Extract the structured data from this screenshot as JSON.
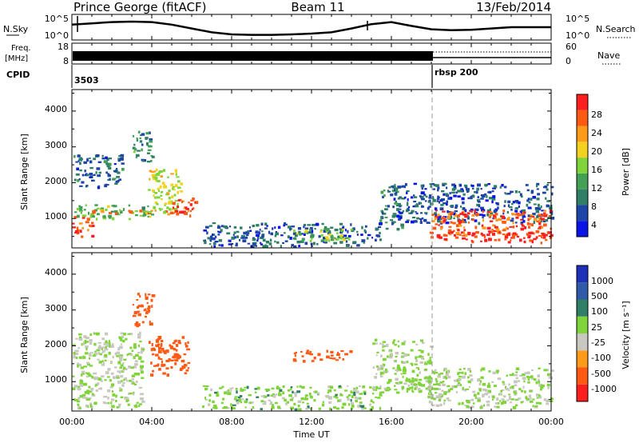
{
  "header": {
    "station": "Prince George (fitACF)",
    "beam": "Beam 11",
    "date": "13/Feb/2014"
  },
  "noise_panel": {
    "left_label": "N.Sky",
    "right_label": "N.Search",
    "left_ticks": [
      "10^5",
      "10^0"
    ],
    "right_ticks": [
      "10^5",
      "10^0"
    ]
  },
  "freq_panel": {
    "left_label_1": "Freq.",
    "left_label_2": "[MHz]",
    "left_ticks": [
      "18",
      "8"
    ],
    "right_label": "Nave",
    "right_ticks": [
      "60",
      "0"
    ]
  },
  "cpid_panel": {
    "label": "CPID",
    "programs": [
      {
        "name": "3503",
        "start_hour": 0
      },
      {
        "name": "rbsp 200",
        "start_hour": 18
      }
    ]
  },
  "time_axis": {
    "label": "Time UT",
    "ticks": [
      "00:00",
      "04:00",
      "08:00",
      "12:00",
      "16:00",
      "20:00",
      "00:00"
    ]
  },
  "range_axis": {
    "label": "Slant Range [km]",
    "ticks": [
      "1000",
      "2000",
      "3000",
      "4000"
    ]
  },
  "power_scale": {
    "label": "Power [dB]",
    "ticks": [
      "4",
      "8",
      "12",
      "16",
      "20",
      "24",
      "28"
    ],
    "colors": [
      "#0a14e6",
      "#1e44a8",
      "#2e7f66",
      "#44a055",
      "#7fd43a",
      "#f2d21e",
      "#ff9a1a",
      "#ff5a14",
      "#ff1e1e"
    ]
  },
  "velocity_scale": {
    "label": "Velocity [m s⁻¹]",
    "ticks": [
      "1000",
      "500",
      "100",
      "25",
      "-25",
      "-100",
      "-500",
      "-1000"
    ],
    "colors": [
      "#1e2fb8",
      "#2e5aa8",
      "#2e7f66",
      "#7fd43a",
      "#c8c8c0",
      "#ff9a1a",
      "#ff5a14",
      "#ff1e1e"
    ]
  },
  "chart_data": [
    {
      "type": "heatmap",
      "title": "Prince George (fitACF) Beam 11 13/Feb/2014",
      "xlabel": "Time UT",
      "ylabel": "Slant Range [km]",
      "colorbar": "Power [dB]",
      "xlim_hours": [
        0,
        24
      ],
      "ylim_km": [
        180,
        4600
      ],
      "clim_db": [
        0,
        31
      ],
      "regions": [
        {
          "t": [
            0.0,
            1.0
          ],
          "r": [
            500,
            1100
          ],
          "level": 27
        },
        {
          "t": [
            0.0,
            4.0
          ],
          "r": [
            1000,
            1400
          ],
          "level": 14
        },
        {
          "t": [
            1.0,
            5.8
          ],
          "r": [
            1150,
            1250
          ],
          "level": 26
        },
        {
          "t": [
            0.0,
            2.5
          ],
          "r": [
            1900,
            2800
          ],
          "level": 7
        },
        {
          "t": [
            3.8,
            5.5
          ],
          "r": [
            1200,
            2400
          ],
          "level": 18
        },
        {
          "t": [
            5.0,
            6.2
          ],
          "r": [
            1100,
            1600
          ],
          "level": 27
        },
        {
          "t": [
            3.0,
            4.0
          ],
          "r": [
            2600,
            3500
          ],
          "level": 10
        },
        {
          "t": [
            6.5,
            15.5
          ],
          "r": [
            250,
            900
          ],
          "level": 6
        },
        {
          "t": [
            11.0,
            14.0
          ],
          "r": [
            400,
            750
          ],
          "level": 15
        },
        {
          "t": [
            15.4,
            16.5
          ],
          "r": [
            700,
            2000
          ],
          "level": 8
        },
        {
          "t": [
            16.0,
            24.0
          ],
          "r": [
            900,
            2000
          ],
          "level": 6
        },
        {
          "t": [
            17.8,
            24.0
          ],
          "r": [
            500,
            1250
          ],
          "level": 26
        },
        {
          "t": [
            18.6,
            24.0
          ],
          "r": [
            350,
            650
          ],
          "level": 29
        }
      ]
    },
    {
      "type": "heatmap",
      "xlabel": "Time UT",
      "ylabel": "Slant Range [km]",
      "colorbar": "Velocity [m s⁻¹]",
      "xlim_hours": [
        0,
        24
      ],
      "ylim_km": [
        180,
        4600
      ],
      "clim_ms": [
        -1000,
        1000
      ],
      "regions": [
        {
          "t": [
            0.0,
            3.5
          ],
          "r": [
            300,
            2400
          ],
          "velocity": 0
        },
        {
          "t": [
            3.8,
            5.8
          ],
          "r": [
            1200,
            2300
          ],
          "velocity": -150
        },
        {
          "t": [
            3.0,
            4.0
          ],
          "r": [
            2600,
            3500
          ],
          "velocity": -200
        },
        {
          "t": [
            6.5,
            15.5
          ],
          "r": [
            250,
            900
          ],
          "velocity": 10
        },
        {
          "t": [
            11.0,
            14.0
          ],
          "r": [
            1600,
            1900
          ],
          "velocity": -150
        },
        {
          "t": [
            15.0,
            18.0
          ],
          "r": [
            700,
            2200
          ],
          "velocity": 5
        },
        {
          "t": [
            17.8,
            24.0
          ],
          "r": [
            300,
            1400
          ],
          "velocity": 0
        }
      ]
    },
    {
      "type": "line",
      "title": "N.Sky / N.Search",
      "x_hours": [
        0,
        1,
        2,
        3,
        4,
        5,
        6,
        7,
        8,
        9,
        10,
        11,
        12,
        13,
        14,
        15,
        16,
        17,
        18,
        19,
        20,
        21,
        22,
        23,
        24
      ],
      "series": [
        {
          "values": [
            0.6,
            0.65,
            0.7,
            0.72,
            0.7,
            0.6,
            0.45,
            0.3,
            0.22,
            0.2,
            0.2,
            0.22,
            0.25,
            0.3,
            0.45,
            0.62,
            0.7,
            0.55,
            0.42,
            0.38,
            0.4,
            0.45,
            0.5,
            0.5,
            0.5
          ]
        }
      ]
    },
    {
      "type": "line",
      "title": "Freq. / Nave",
      "x_hours": [
        0,
        18,
        24
      ],
      "series": [
        {
          "name": "Freq.",
          "values": [
            13,
            13,
            13
          ]
        },
        {
          "name": "Nave",
          "values": [
            28,
            28,
            28
          ]
        }
      ]
    }
  ]
}
